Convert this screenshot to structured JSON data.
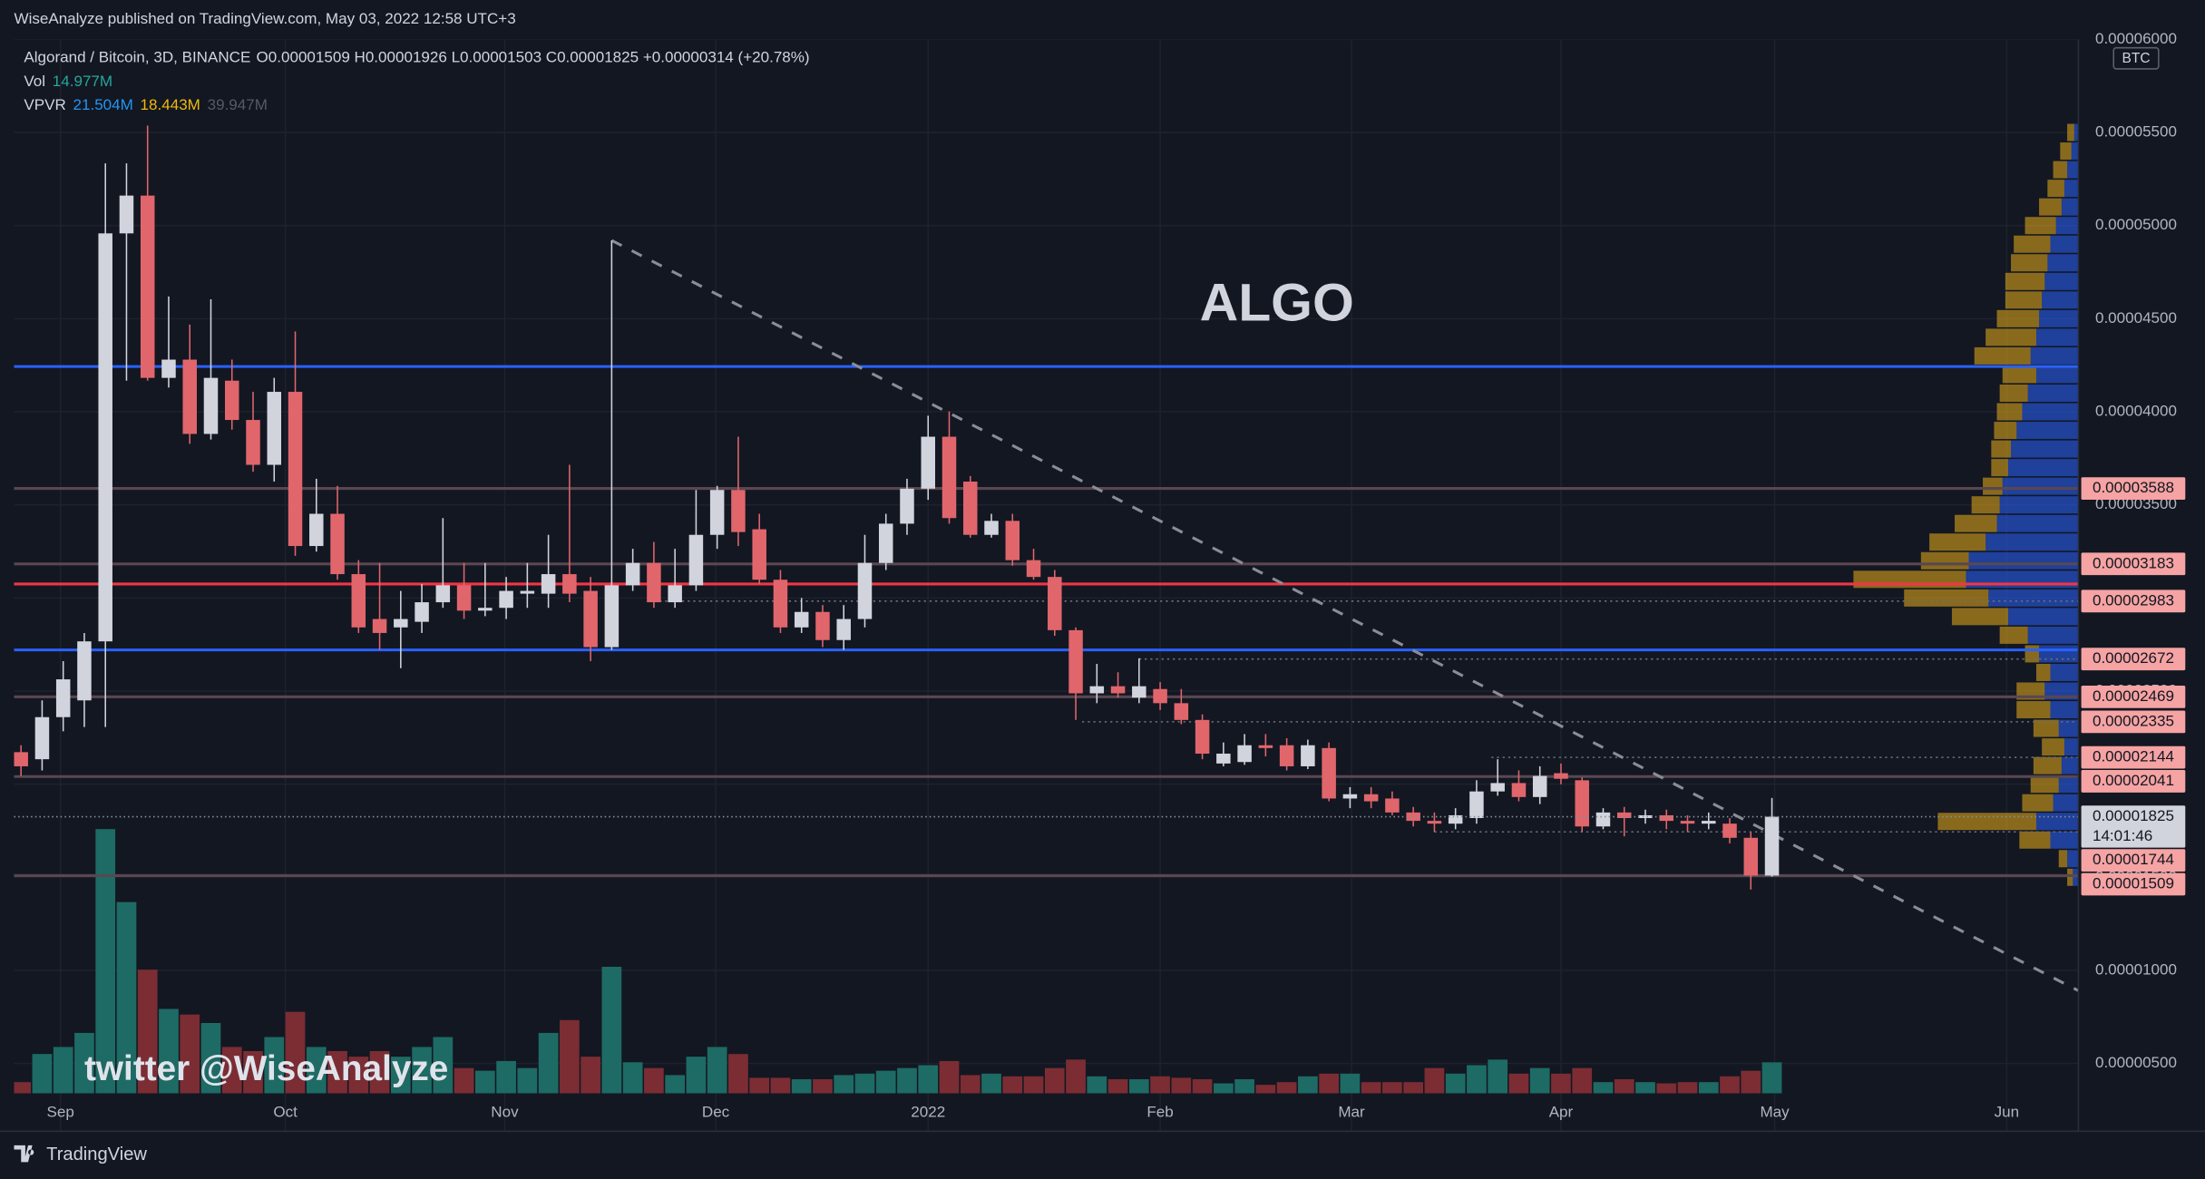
{
  "header": {
    "publisher": "WiseAnalyze published on TradingView.com, May 03, 2022 12:58 UTC+3"
  },
  "footer": {
    "brand": "TradingView"
  },
  "chart_data": {
    "type": "candlestick",
    "legend": {
      "symbol": "Algorand / Bitcoin, 3D, BINANCE",
      "ohlc": "O0.00001509 H0.00001926 L0.00001503 C0.00001825 +0.00000314 (+20.78%)",
      "vol_name": "Vol",
      "vol_value": "14.977M",
      "vpvr_name": "VPVR",
      "vpvr_up": "21.504M",
      "vpvr_down": "18.443M",
      "vpvr_total": "39.947M"
    },
    "annotations": [
      "ALGO",
      "twitter @WiseAnalyze"
    ],
    "unit": "BTC",
    "up_color": "#d1d4dc",
    "down_color": "#e0666c",
    "volume_up_color": "#1d6b64",
    "volume_down_color": "#7b2d33",
    "xlim": [
      -0.33,
      97.53
    ],
    "xticks": [
      {
        "value": 1.87,
        "label": "Sep"
      },
      {
        "value": 12.53,
        "label": "Oct"
      },
      {
        "value": 22.93,
        "label": "Nov"
      },
      {
        "value": 32.93,
        "label": "Dec"
      },
      {
        "value": 43,
        "label": "2022"
      },
      {
        "value": 54,
        "label": "Feb"
      },
      {
        "value": 63.07,
        "label": "Mar"
      },
      {
        "value": 73,
        "label": "Apr"
      },
      {
        "value": 83.13,
        "label": "May"
      },
      {
        "value": 94.13,
        "label": "Jun"
      }
    ],
    "ylim": [
      3.4e-06,
      6e-05
    ],
    "yticks": [
      {
        "value": 5e-06,
        "label": "0.00000500"
      },
      {
        "value": 1e-05,
        "label": "0.00001000"
      },
      {
        "value": 1.5e-05,
        "label": "0.00001500"
      },
      {
        "value": 2e-05,
        "label": "0.00002000"
      },
      {
        "value": 2.5e-05,
        "label": "0.00002500"
      },
      {
        "value": 3e-05,
        "label": "0.00003000"
      },
      {
        "value": 3.5e-05,
        "label": "0.00003500"
      },
      {
        "value": 4e-05,
        "label": "0.00004000"
      },
      {
        "value": 4.5e-05,
        "label": "0.00004500"
      },
      {
        "value": 5e-05,
        "label": "0.00005000"
      },
      {
        "value": 5.5e-05,
        "label": "0.00005500"
      },
      {
        "value": 6e-05,
        "label": "0.00006000"
      }
    ],
    "grid": true,
    "open": [
      2.172e-05,
      2.134e-05,
      2.36e-05,
      2.45e-05,
      2.767e-05,
      4.958e-05,
      5.161e-05,
      4.182e-05,
      4.28e-05,
      3.881e-05,
      4.167e-05,
      3.956e-05,
      3.715e-05,
      4.107e-05,
      3.279e-05,
      3.452e-05,
      3.128e-05,
      2.887e-05,
      2.842e-05,
      2.872e-05,
      2.977e-05,
      3.068e-05,
      2.932e-05,
      2.947e-05,
      3.023e-05,
      3.023e-05,
      3.128e-05,
      3.038e-05,
      2.736e-05,
      3.068e-05,
      3.188e-05,
      2.977e-05,
      3.068e-05,
      3.339e-05,
      3.58e-05,
      3.369e-05,
      3.098e-05,
      2.842e-05,
      2.925e-05,
      2.774e-05,
      2.887e-05,
      3.188e-05,
      3.399e-05,
      3.587e-05,
      3.866e-05,
      3.625e-05,
      3.339e-05,
      3.414e-05,
      3.203e-05,
      3.113e-05,
      2.827e-05,
      2.488e-05,
      2.526e-05,
      2.465e-05,
      2.511e-05,
      2.435e-05,
      2.345e-05,
      2.111e-05,
      2.119e-05,
      2.209e-05,
      2.209e-05,
      2.096e-05,
      2.194e-05,
      1.923e-05,
      1.946e-05,
      1.923e-05,
      1.848e-05,
      1.803e-05,
      1.788e-05,
      1.818e-05,
      1.961e-05,
      2.006e-05,
      1.931e-05,
      2.059e-05,
      2.021e-05,
      1.773e-05,
      1.848e-05,
      1.818e-05,
      1.833e-05,
      1.803e-05,
      1.788e-05,
      1.788e-05,
      1.712e-05,
      1.509e-05
    ],
    "high": [
      2.209e-05,
      2.45e-05,
      2.661e-05,
      2.812e-05,
      5.334e-05,
      5.334e-05,
      5.537e-05,
      4.619e-05,
      4.468e-05,
      4.604e-05,
      4.28e-05,
      4.107e-05,
      4.182e-05,
      4.431e-05,
      3.64e-05,
      3.602e-05,
      3.203e-05,
      3.188e-05,
      3.038e-05,
      3.075e-05,
      3.429e-05,
      3.188e-05,
      3.188e-05,
      3.113e-05,
      3.188e-05,
      3.339e-05,
      3.715e-05,
      3.113e-05,
      4.92e-05,
      3.264e-05,
      3.301e-05,
      3.264e-05,
      3.58e-05,
      3.602e-05,
      3.866e-05,
      3.452e-05,
      3.15e-05,
      3e-05,
      2.962e-05,
      2.962e-05,
      3.339e-05,
      3.452e-05,
      3.64e-05,
      3.979e-05,
      4.002e-05,
      3.655e-05,
      3.452e-05,
      3.452e-05,
      3.264e-05,
      3.15e-05,
      2.842e-05,
      2.646e-05,
      2.601e-05,
      2.676e-05,
      2.548e-05,
      2.511e-05,
      2.375e-05,
      2.224e-05,
      2.269e-05,
      2.269e-05,
      2.247e-05,
      2.239e-05,
      2.224e-05,
      1.984e-05,
      1.984e-05,
      1.961e-05,
      1.878e-05,
      1.848e-05,
      1.871e-05,
      2.021e-05,
      2.134e-05,
      2.074e-05,
      2.096e-05,
      2.111e-05,
      2.036e-05,
      1.871e-05,
      1.878e-05,
      1.863e-05,
      1.863e-05,
      1.833e-05,
      1.848e-05,
      1.818e-05,
      1.743e-05,
      1.926e-05
    ],
    "low": [
      2.044e-05,
      2.074e-05,
      2.284e-05,
      2.307e-05,
      2.307e-05,
      4.167e-05,
      4.167e-05,
      4.13e-05,
      3.828e-05,
      3.851e-05,
      3.904e-05,
      3.678e-05,
      3.625e-05,
      3.226e-05,
      3.249e-05,
      3.098e-05,
      2.812e-05,
      2.721e-05,
      2.623e-05,
      2.812e-05,
      2.947e-05,
      2.887e-05,
      2.902e-05,
      2.887e-05,
      2.947e-05,
      2.947e-05,
      2.977e-05,
      2.661e-05,
      2.721e-05,
      3.038e-05,
      2.947e-05,
      2.947e-05,
      3.038e-05,
      3.264e-05,
      3.279e-05,
      3.075e-05,
      2.812e-05,
      2.812e-05,
      2.736e-05,
      2.721e-05,
      2.842e-05,
      3.15e-05,
      3.339e-05,
      3.527e-05,
      3.399e-05,
      3.324e-05,
      3.324e-05,
      3.173e-05,
      3.098e-05,
      2.797e-05,
      2.345e-05,
      2.435e-05,
      2.465e-05,
      2.435e-05,
      2.398e-05,
      2.322e-05,
      2.134e-05,
      2.096e-05,
      2.104e-05,
      2.149e-05,
      2.074e-05,
      2.081e-05,
      1.908e-05,
      1.871e-05,
      1.871e-05,
      1.833e-05,
      1.773e-05,
      1.743e-05,
      1.758e-05,
      1.788e-05,
      1.938e-05,
      1.908e-05,
      1.893e-05,
      1.999e-05,
      1.743e-05,
      1.758e-05,
      1.72e-05,
      1.788e-05,
      1.758e-05,
      1.743e-05,
      1.758e-05,
      1.682e-05,
      1.434e-05,
      1.503e-05
    ],
    "close": [
      2.096e-05,
      2.36e-05,
      2.563e-05,
      2.767e-05,
      4.958e-05,
      5.161e-05,
      4.182e-05,
      4.28e-05,
      3.881e-05,
      4.182e-05,
      3.956e-05,
      3.715e-05,
      4.107e-05,
      3.279e-05,
      3.452e-05,
      3.128e-05,
      2.842e-05,
      2.812e-05,
      2.887e-05,
      2.977e-05,
      3.068e-05,
      2.932e-05,
      2.947e-05,
      3.038e-05,
      3.038e-05,
      3.128e-05,
      3.023e-05,
      2.736e-05,
      3.068e-05,
      3.188e-05,
      2.977e-05,
      3.068e-05,
      3.339e-05,
      3.58e-05,
      3.354e-05,
      3.098e-05,
      2.842e-05,
      2.925e-05,
      2.774e-05,
      2.887e-05,
      3.188e-05,
      3.399e-05,
      3.587e-05,
      3.866e-05,
      3.429e-05,
      3.339e-05,
      3.414e-05,
      3.203e-05,
      3.113e-05,
      2.827e-05,
      2.488e-05,
      2.526e-05,
      2.488e-05,
      2.526e-05,
      2.435e-05,
      2.345e-05,
      2.164e-05,
      2.164e-05,
      2.209e-05,
      2.194e-05,
      2.096e-05,
      2.209e-05,
      1.923e-05,
      1.946e-05,
      1.908e-05,
      1.848e-05,
      1.803e-05,
      1.788e-05,
      1.833e-05,
      1.961e-05,
      2.006e-05,
      1.931e-05,
      2.044e-05,
      2.029e-05,
      1.773e-05,
      1.848e-05,
      1.818e-05,
      1.833e-05,
      1.803e-05,
      1.788e-05,
      1.803e-05,
      1.712e-05,
      1.509e-05,
      1.825e-05
    ],
    "volume": [
      5.4,
      19,
      22.4,
      29.2,
      127.8,
      92.5,
      59.8,
      40.8,
      38.1,
      34,
      22.4,
      20.4,
      27.2,
      39.4,
      22.4,
      20.4,
      17.7,
      20.4,
      17.7,
      22.4,
      27.2,
      12.2,
      10.9,
      15.6,
      12.2,
      29.2,
      35.4,
      17.7,
      61.2,
      15,
      12.2,
      8.8,
      17.7,
      22.4,
      19,
      7.5,
      7.5,
      6.8,
      6.8,
      8.8,
      9.5,
      10.9,
      12.2,
      13.6,
      15.6,
      8.8,
      9.5,
      8.2,
      8.2,
      12.2,
      16.3,
      8.2,
      6.8,
      6.8,
      8.2,
      7.5,
      6.8,
      4.8,
      6.8,
      4.1,
      5.4,
      8.2,
      9.5,
      9.5,
      5.4,
      5.4,
      5.4,
      12.2,
      9.5,
      13.6,
      16.3,
      9.5,
      12.2,
      9.5,
      12.2,
      5.4,
      6.8,
      5.4,
      4.8,
      5.4,
      5.4,
      8.2,
      10.9,
      14.977
    ],
    "volume_profile": {
      "up_color": "#2962ff",
      "down_color": "#d9a21b",
      "prices": [
        5.5e-05,
        5.4e-05,
        5.3e-05,
        5.2e-05,
        5.1e-05,
        5e-05,
        4.9e-05,
        4.8e-05,
        4.7e-05,
        4.6e-05,
        4.5e-05,
        4.4e-05,
        4.3e-05,
        4.2e-05,
        4.1e-05,
        4e-05,
        3.9e-05,
        3.8e-05,
        3.7e-05,
        3.6e-05,
        3.5e-05,
        3.4e-05,
        3.3e-05,
        3.2e-05,
        3.1e-05,
        3e-05,
        2.9e-05,
        2.8e-05,
        2.7e-05,
        2.6e-05,
        2.5e-05,
        2.4e-05,
        2.3e-05,
        2.2e-05,
        2.1e-05,
        2e-05,
        1.9e-05,
        1.8e-05,
        1.7e-05,
        1.6e-05,
        1.5e-05
      ],
      "up": [
        3,
        5,
        8,
        10,
        12,
        16,
        20,
        22,
        24,
        26,
        28,
        30,
        34,
        30,
        36,
        40,
        44,
        48,
        50,
        54,
        56,
        58,
        66,
        78,
        80,
        64,
        50,
        36,
        28,
        20,
        24,
        20,
        14,
        10,
        12,
        14,
        18,
        30,
        20,
        8,
        4
      ],
      "down": [
        5,
        8,
        10,
        12,
        16,
        22,
        26,
        26,
        28,
        26,
        30,
        36,
        40,
        24,
        20,
        18,
        16,
        14,
        12,
        14,
        20,
        30,
        40,
        34,
        80,
        60,
        40,
        20,
        10,
        10,
        20,
        24,
        18,
        16,
        20,
        20,
        22,
        70,
        22,
        6,
        4
      ]
    },
    "hlines": [
      {
        "value": 4.243e-05,
        "color": "#2962ff"
      },
      {
        "value": 2.721e-05,
        "color": "#2962ff"
      },
      {
        "value": 3.075e-05,
        "color": "#f23645"
      },
      {
        "value": 3.588e-05,
        "color": "#5a4750"
      },
      {
        "value": 3.183e-05,
        "color": "#5a4750"
      },
      {
        "value": 2.469e-05,
        "color": "#5a4750"
      },
      {
        "value": 2.041e-05,
        "color": "#5a4750"
      },
      {
        "value": 1.509e-05,
        "color": "#5a4750"
      }
    ],
    "dotted_levels": [
      {
        "value": 2.983e-05,
        "from": 30
      },
      {
        "value": 2.672e-05,
        "from": 53
      },
      {
        "value": 2.335e-05,
        "from": 50.3
      },
      {
        "value": 2.144e-05,
        "from": 69.7
      },
      {
        "value": 1.744e-05,
        "from": 67
      }
    ],
    "trendline": {
      "x": [
        28,
        97.53
      ],
      "y": [
        4.92e-05,
        8.91e-06
      ],
      "color": "#8a8d96"
    },
    "price_labels": [
      {
        "value": 3.588e-05,
        "label": "0.00003588",
        "color": "#f5a3a3"
      },
      {
        "value": 3.183e-05,
        "label": "0.00003183",
        "color": "#f5a3a3"
      },
      {
        "value": 2.983e-05,
        "label": "0.00002983",
        "color": "#f5a3a3"
      },
      {
        "value": 2.672e-05,
        "label": "0.00002672",
        "color": "#f5a3a3"
      },
      {
        "value": 2.469e-05,
        "label": "0.00002469",
        "color": "#f5a3a3"
      },
      {
        "value": 2.335e-05,
        "label": "0.00002335",
        "color": "#f5a3a3"
      },
      {
        "value": 2.144e-05,
        "label": "0.00002144",
        "color": "#f5a3a3"
      },
      {
        "value": 2.041e-05,
        "label": "0.00002041",
        "color": "#f5a3a3"
      },
      {
        "value": 1.825e-05,
        "label": "0.00001825",
        "color": "#d1d4dc",
        "countdown": "14:01:46"
      },
      {
        "value": 1.744e-05,
        "label": "0.00001744",
        "color": "#f5a3a3"
      },
      {
        "value": 1.509e-05,
        "label": "0.00001509",
        "color": "#f5a3a3"
      }
    ]
  }
}
